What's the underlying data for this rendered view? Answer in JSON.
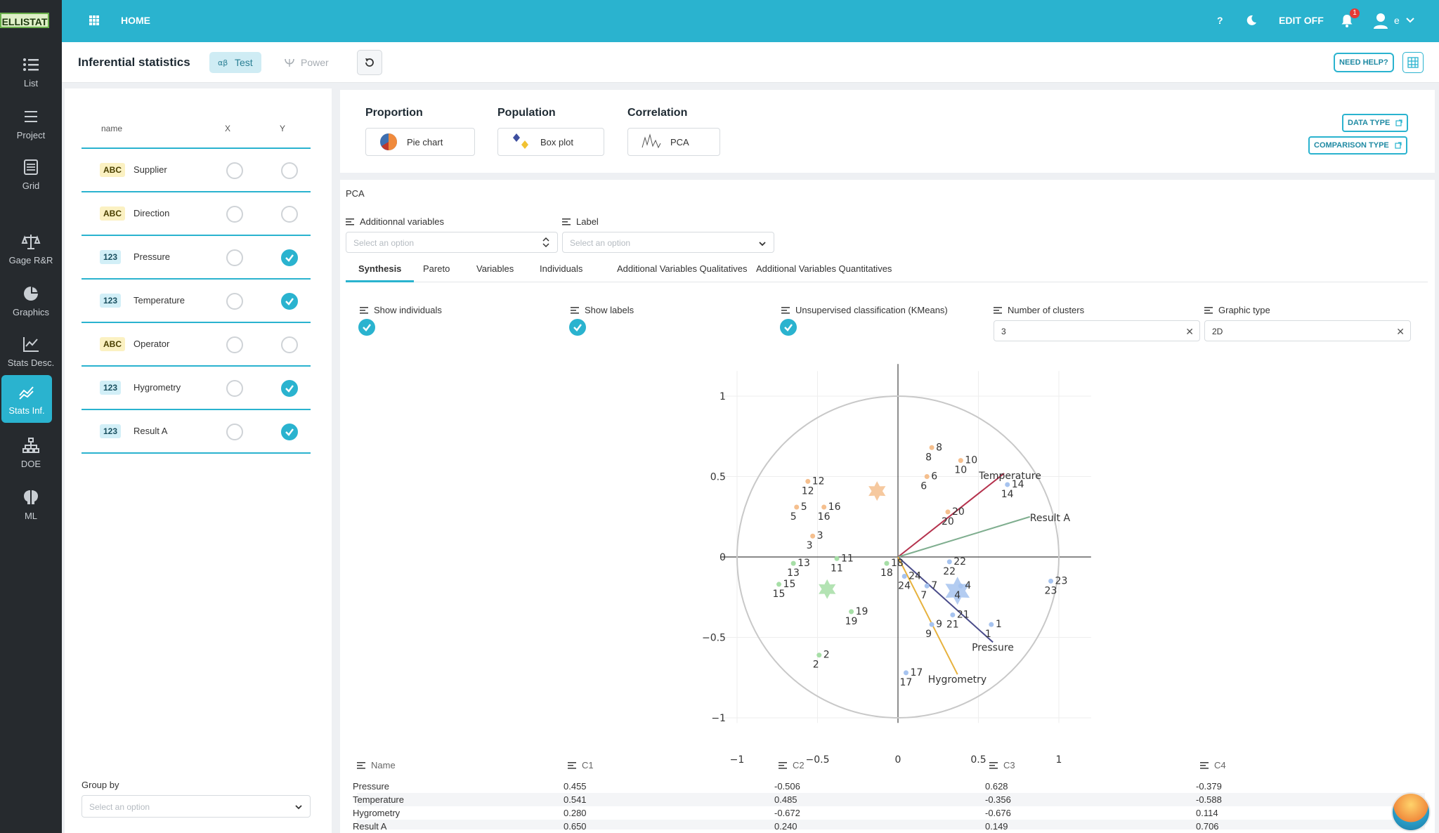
{
  "app": {
    "logo": "ELLISTAT",
    "home": "HOME",
    "help": "?",
    "edit": "EDIT OFF",
    "notifications": "1",
    "user": "e"
  },
  "nav": [
    {
      "label": "List",
      "icon": "list-icon"
    },
    {
      "label": "Project",
      "icon": "menu-icon"
    },
    {
      "label": "Grid",
      "icon": "grid-table-icon"
    },
    {
      "label": "Gage R&R",
      "icon": "scale-icon"
    },
    {
      "label": "Graphics",
      "icon": "pie-icon"
    },
    {
      "label": "Stats Desc.",
      "icon": "bar-chart-icon"
    },
    {
      "label": "Stats Inf.",
      "icon": "trend-icon"
    },
    {
      "label": "DOE",
      "icon": "hierarchy-icon"
    },
    {
      "label": "ML",
      "icon": "brain-icon"
    }
  ],
  "subheader": {
    "title": "Inferential statistics",
    "test": "Test",
    "power": "Power",
    "need_help": "NEED HELP?"
  },
  "variables": {
    "headers": {
      "name": "name",
      "x": "X",
      "y": "Y"
    },
    "rows": [
      {
        "type": "ABC",
        "name": "Supplier",
        "x": false,
        "y": false
      },
      {
        "type": "ABC",
        "name": "Direction",
        "x": false,
        "y": false
      },
      {
        "type": "123",
        "name": "Pressure",
        "x": false,
        "y": true
      },
      {
        "type": "123",
        "name": "Temperature",
        "x": false,
        "y": true
      },
      {
        "type": "ABC",
        "name": "Operator",
        "x": false,
        "y": false
      },
      {
        "type": "123",
        "name": "Hygrometry",
        "x": false,
        "y": true
      },
      {
        "type": "123",
        "name": "Result A",
        "x": false,
        "y": true
      }
    ],
    "group_by_label": "Group by",
    "group_by_placeholder": "Select an option"
  },
  "test_types": {
    "proportion": {
      "label": "Proportion",
      "button": "Pie chart"
    },
    "population": {
      "label": "Population",
      "button": "Box plot"
    },
    "correlation": {
      "label": "Correlation",
      "button": "PCA"
    },
    "data_type": "DATA TYPE",
    "comparison_type": "COMPARISON TYPE"
  },
  "pca": {
    "title": "PCA",
    "additional_label": "Additionnal variables",
    "additional_placeholder": "Select an option",
    "label_label": "Label",
    "label_placeholder": "Select an option",
    "tabs": [
      "Synthesis",
      "Pareto",
      "Variables",
      "Individuals",
      "Additional Variables Qualitatives",
      "Additional Variables Quantitatives"
    ],
    "options": {
      "show_individuals": "Show individuals",
      "show_labels": "Show labels",
      "kmeans": "Unsupervised classification (KMeans)",
      "clusters_label": "Number of clusters",
      "clusters_value": "3",
      "graphic_type_label": "Graphic type",
      "graphic_type_value": "2D"
    },
    "loadings": {
      "headers": [
        "Name",
        "C1",
        "C2",
        "C3",
        "C4"
      ],
      "rows": [
        [
          "Pressure",
          "0.455",
          "-0.506",
          "0.628",
          "-0.379"
        ],
        [
          "Temperature",
          "0.541",
          "0.485",
          "-0.356",
          "-0.588"
        ],
        [
          "Hygrometry",
          "0.280",
          "-0.672",
          "-0.676",
          "0.114"
        ],
        [
          "Result A",
          "0.650",
          "0.240",
          "0.149",
          "0.706"
        ]
      ]
    }
  },
  "chart_data": {
    "type": "scatter",
    "title": "",
    "xlabel": "",
    "ylabel": "",
    "xlim": [
      -1.1,
      1.2
    ],
    "ylim": [
      -1.25,
      1.2
    ],
    "xticks": [
      -1,
      -0.5,
      0,
      0.5,
      1
    ],
    "yticks": [
      1,
      0.5,
      0,
      -0.5,
      -1
    ],
    "tick_labels_x": [
      "−1",
      "−0.5",
      "0",
      "0.5",
      "1"
    ],
    "tick_labels_y": [
      "1",
      "0.5",
      "0",
      "−0.5",
      "−1"
    ],
    "cluster_colors": [
      "#f5bf8e",
      "#a6dea6",
      "#a6c3ef"
    ],
    "vectors": [
      {
        "name": "Temperature",
        "x": 0.66,
        "y": 0.52,
        "color": "#b5324d"
      },
      {
        "name": "Result A",
        "x": 0.82,
        "y": 0.25,
        "color": "#7fae8f"
      },
      {
        "name": "Pressure",
        "x": 0.59,
        "y": -0.53,
        "color": "#4a4c8a"
      },
      {
        "name": "Hygrometry",
        "x": 0.37,
        "y": -0.73,
        "color": "#e7b23e"
      }
    ],
    "centroids": [
      {
        "cluster": 0,
        "x": -0.13,
        "y": 0.41
      },
      {
        "cluster": 1,
        "x": -0.44,
        "y": -0.2
      },
      {
        "cluster": 2,
        "x": 0.37,
        "y": -0.21
      }
    ],
    "points": [
      {
        "label": "1",
        "x": 0.58,
        "y": -0.42,
        "cluster": 2
      },
      {
        "label": "2",
        "x": -0.49,
        "y": -0.61,
        "cluster": 1
      },
      {
        "label": "3",
        "x": -0.53,
        "y": 0.13,
        "cluster": 0
      },
      {
        "label": "4",
        "x": 0.39,
        "y": -0.18,
        "cluster": 2
      },
      {
        "label": "5",
        "x": -0.63,
        "y": 0.31,
        "cluster": 0
      },
      {
        "label": "6",
        "x": 0.18,
        "y": 0.5,
        "cluster": 0
      },
      {
        "label": "7",
        "x": 0.18,
        "y": -0.18,
        "cluster": 2
      },
      {
        "label": "8",
        "x": 0.21,
        "y": 0.68,
        "cluster": 0
      },
      {
        "label": "9",
        "x": 0.21,
        "y": -0.42,
        "cluster": 2
      },
      {
        "label": "10",
        "x": 0.39,
        "y": 0.6,
        "cluster": 0
      },
      {
        "label": "11",
        "x": -0.38,
        "y": -0.01,
        "cluster": 1
      },
      {
        "label": "12",
        "x": -0.56,
        "y": 0.47,
        "cluster": 0
      },
      {
        "label": "13",
        "x": -0.65,
        "y": -0.04,
        "cluster": 1
      },
      {
        "label": "14",
        "x": 0.68,
        "y": 0.45,
        "cluster": 2
      },
      {
        "label": "15",
        "x": -0.74,
        "y": -0.17,
        "cluster": 1
      },
      {
        "label": "16",
        "x": -0.46,
        "y": 0.31,
        "cluster": 0
      },
      {
        "label": "17",
        "x": 0.05,
        "y": -0.72,
        "cluster": 2
      },
      {
        "label": "18",
        "x": -0.07,
        "y": -0.04,
        "cluster": 1
      },
      {
        "label": "19",
        "x": -0.29,
        "y": -0.34,
        "cluster": 1
      },
      {
        "label": "20",
        "x": 0.31,
        "y": 0.28,
        "cluster": 0
      },
      {
        "label": "21",
        "x": 0.34,
        "y": -0.36,
        "cluster": 2
      },
      {
        "label": "22",
        "x": 0.32,
        "y": -0.03,
        "cluster": 2
      },
      {
        "label": "23",
        "x": 0.95,
        "y": -0.15,
        "cluster": 2
      },
      {
        "label": "24",
        "x": 0.04,
        "y": -0.12,
        "cluster": 2
      }
    ],
    "unit_circle": true,
    "grid": true,
    "legend": "none"
  }
}
